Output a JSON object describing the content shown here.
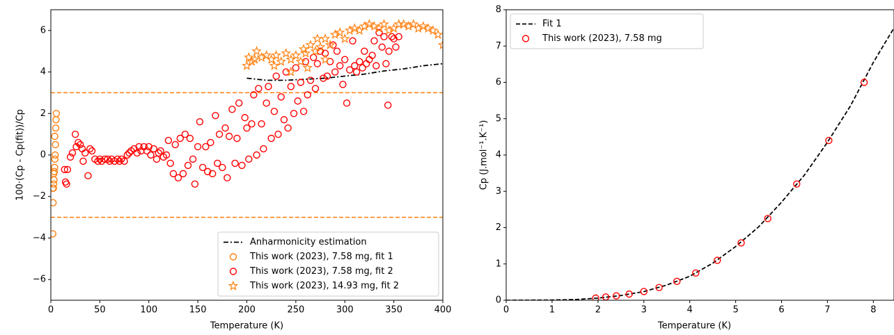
{
  "chart_data": [
    {
      "type": "scatter",
      "xlabel": "Temperature (K)",
      "ylabel": "100·(Cp - Cp(fit))/Cp",
      "xlim": [
        0,
        400
      ],
      "ylim": [
        -7,
        7
      ],
      "xticks": [
        0,
        50,
        100,
        150,
        200,
        250,
        300,
        350,
        400
      ],
      "yticks": [
        {
          "value": -6,
          "label": "−6"
        },
        {
          "value": -4,
          "label": "−4"
        },
        {
          "value": -2,
          "label": "−2"
        },
        0,
        2,
        4,
        6
      ],
      "hlines": [
        3,
        -3
      ],
      "hline_color": "#ff7f0e",
      "legend": "lower right",
      "series": [
        {
          "name": "Anharmonicity estimation",
          "color": "#000000",
          "line": "dashdot",
          "marker": "none",
          "x": [
            200,
            220,
            240,
            260,
            280,
            300,
            320,
            340,
            360,
            380,
            400
          ],
          "values": [
            3.7,
            3.6,
            3.6,
            3.65,
            3.7,
            3.8,
            3.9,
            4.05,
            4.15,
            4.3,
            4.4
          ]
        },
        {
          "name": "This work (2023), 7.58 mg, fit 1",
          "color": "#ff7f0e",
          "line": "none",
          "marker": "circle",
          "x": [
            2,
            2.3,
            2.6,
            2.9,
            3.2,
            3.5,
            3.8,
            4.1,
            4.4,
            4.7,
            5,
            5.3,
            5.6,
            2.1,
            3,
            4
          ],
          "values": [
            -3.8,
            -2.3,
            -1.6,
            -1.4,
            -1.2,
            -0.8,
            -0.6,
            -0.2,
            0,
            0.5,
            1.3,
            1.7,
            2,
            -1.6,
            -0.9,
            0.9
          ]
        },
        {
          "name": "This work (2023), 7.58 mg, fit 2",
          "color": "#ff0000",
          "line": "none",
          "marker": "circle",
          "x": [
            14,
            15,
            16,
            17,
            20,
            22,
            25,
            26,
            28,
            30,
            32,
            33,
            35,
            38,
            40,
            42,
            45,
            48,
            50,
            52,
            55,
            58,
            60,
            62,
            65,
            68,
            70,
            72,
            75,
            78,
            80,
            82,
            85,
            88,
            90,
            92,
            95,
            98,
            100,
            102,
            105,
            108,
            110,
            112,
            115,
            118,
            120,
            122,
            125,
            127,
            130,
            132,
            135,
            137,
            140,
            142,
            145,
            147,
            150,
            152,
            155,
            158,
            160,
            163,
            165,
            168,
            170,
            172,
            175,
            178,
            180,
            182,
            185,
            188,
            190,
            192,
            195,
            198,
            200,
            202,
            205,
            207,
            210,
            212,
            215,
            217,
            220,
            222,
            225,
            228,
            230,
            232,
            235,
            238,
            240,
            242,
            245,
            248,
            250,
            252,
            255,
            258,
            260,
            262,
            265,
            268,
            270,
            272,
            275,
            278,
            280,
            282,
            285,
            288,
            290,
            292,
            295,
            298,
            300,
            302,
            305,
            308,
            310,
            312,
            315,
            318,
            320,
            322,
            325,
            328,
            330,
            332,
            335,
            338,
            340,
            342,
            344,
            345,
            348,
            350,
            352,
            355
          ],
          "values": [
            -0.7,
            -1.3,
            -1.4,
            -0.7,
            -0.1,
            0.1,
            1.0,
            0.4,
            0.6,
            0.5,
            0.3,
            -0.3,
            0.1,
            -1.0,
            0.3,
            0.2,
            -0.2,
            -0.3,
            -0.2,
            -0.3,
            -0.2,
            -0.2,
            -0.3,
            -0.2,
            -0.3,
            -0.2,
            -0.3,
            -0.2,
            -0.3,
            0.0,
            0.1,
            0.2,
            0.3,
            0.1,
            0.4,
            0.2,
            0.4,
            0.2,
            0.4,
            0.0,
            0.3,
            -0.2,
            0.1,
            0.2,
            -0.1,
            0.0,
            0.7,
            -0.4,
            -0.9,
            0.5,
            -1.1,
            0.8,
            -0.9,
            1.0,
            -0.5,
            0.8,
            -0.2,
            -1.4,
            0.4,
            1.6,
            -0.6,
            0.4,
            -0.8,
            0.6,
            -0.9,
            1.9,
            -0.4,
            1.0,
            -0.6,
            1.3,
            -1.1,
            0.9,
            2.2,
            -0.4,
            0.8,
            2.5,
            -0.5,
            1.8,
            1.3,
            -0.2,
            1.5,
            2.9,
            0.0,
            3.2,
            1.5,
            0.3,
            2.5,
            3.3,
            0.8,
            2.1,
            3.8,
            1.0,
            2.8,
            1.7,
            4.0,
            1.3,
            3.3,
            2.0,
            4.2,
            2.6,
            3.5,
            2.1,
            4.5,
            2.9,
            3.6,
            4.7,
            3.2,
            4.4,
            5.0,
            3.7,
            4.9,
            3.8,
            4.5,
            5.3,
            4.0,
            5.0,
            4.3,
            3.4,
            4.6,
            2.5,
            4.1,
            5.5,
            4.3,
            4.0,
            4.5,
            4.2,
            5.0,
            4.4,
            4.6,
            4.8,
            5.5,
            4.3,
            5.9,
            5.2,
            5.7,
            4.4,
            2.4,
            5.0,
            5.7,
            5.6,
            5.2,
            5.7
          ]
        },
        {
          "name": "This work (2023), 14.93 mg, fit 2",
          "color": "#ff7f0e",
          "line": "none",
          "marker": "star",
          "x": [
            200,
            202,
            205,
            208,
            210,
            215,
            220,
            225,
            228,
            230,
            235,
            240,
            245,
            250,
            255,
            258,
            260,
            265,
            270,
            272,
            275,
            280,
            285,
            290,
            295,
            300,
            305,
            310,
            315,
            320,
            325,
            330,
            335,
            340,
            345,
            350,
            355,
            360,
            365,
            370,
            375,
            380,
            385,
            390,
            395,
            400,
            245,
            262,
            280
          ],
          "values": [
            4.3,
            4.7,
            4.5,
            4.6,
            5.0,
            4.7,
            4.8,
            4.6,
            4.3,
            4.8,
            4.5,
            4.9,
            4.6,
            4.8,
            4.5,
            5.1,
            4.9,
            5.3,
            5.0,
            5.6,
            5.2,
            5.6,
            5.3,
            5.8,
            5.9,
            5.6,
            6.0,
            6.1,
            6.0,
            6.2,
            6.3,
            6.2,
            6.1,
            6.3,
            6.0,
            6.1,
            6.3,
            6.3,
            6.2,
            6.3,
            6.1,
            6.2,
            6.1,
            6.0,
            5.8,
            5.3,
            4.0,
            4.2,
            4.6
          ]
        }
      ]
    },
    {
      "type": "scatter",
      "xlabel": "Temperature (K)",
      "ylabel": "Cp (J.mol⁻¹.K⁻¹)",
      "xlim": [
        0,
        8.45
      ],
      "ylim": [
        0,
        8
      ],
      "xticks": [
        0,
        1,
        2,
        3,
        4,
        5,
        6,
        7,
        8
      ],
      "yticks": [
        0,
        1,
        2,
        3,
        4,
        5,
        6,
        7,
        8
      ],
      "legend": "upper left",
      "series": [
        {
          "name": "Fit 1",
          "color": "#000000",
          "line": "dashed",
          "marker": "none",
          "x": [
            0,
            1,
            1.5,
            2,
            2.5,
            3,
            3.5,
            4,
            4.5,
            5,
            5.5,
            6,
            6.5,
            7,
            7.5,
            8,
            8.45
          ],
          "values": [
            0,
            0.005,
            0.02,
            0.06,
            0.13,
            0.24,
            0.42,
            0.66,
            1.02,
            1.48,
            2.02,
            2.7,
            3.45,
            4.35,
            5.35,
            6.55,
            7.5
          ]
        },
        {
          "name": "This work (2023), 7.58 mg",
          "color": "#ff0000",
          "line": "none",
          "marker": "circle",
          "x": [
            1.95,
            2.17,
            2.4,
            2.68,
            3.0,
            3.33,
            3.72,
            4.13,
            4.6,
            5.12,
            5.7,
            6.33,
            7.03,
            7.8
          ],
          "values": [
            0.06,
            0.09,
            0.12,
            0.17,
            0.24,
            0.35,
            0.52,
            0.75,
            1.1,
            1.58,
            2.25,
            3.2,
            4.4,
            6.0
          ]
        }
      ]
    }
  ]
}
